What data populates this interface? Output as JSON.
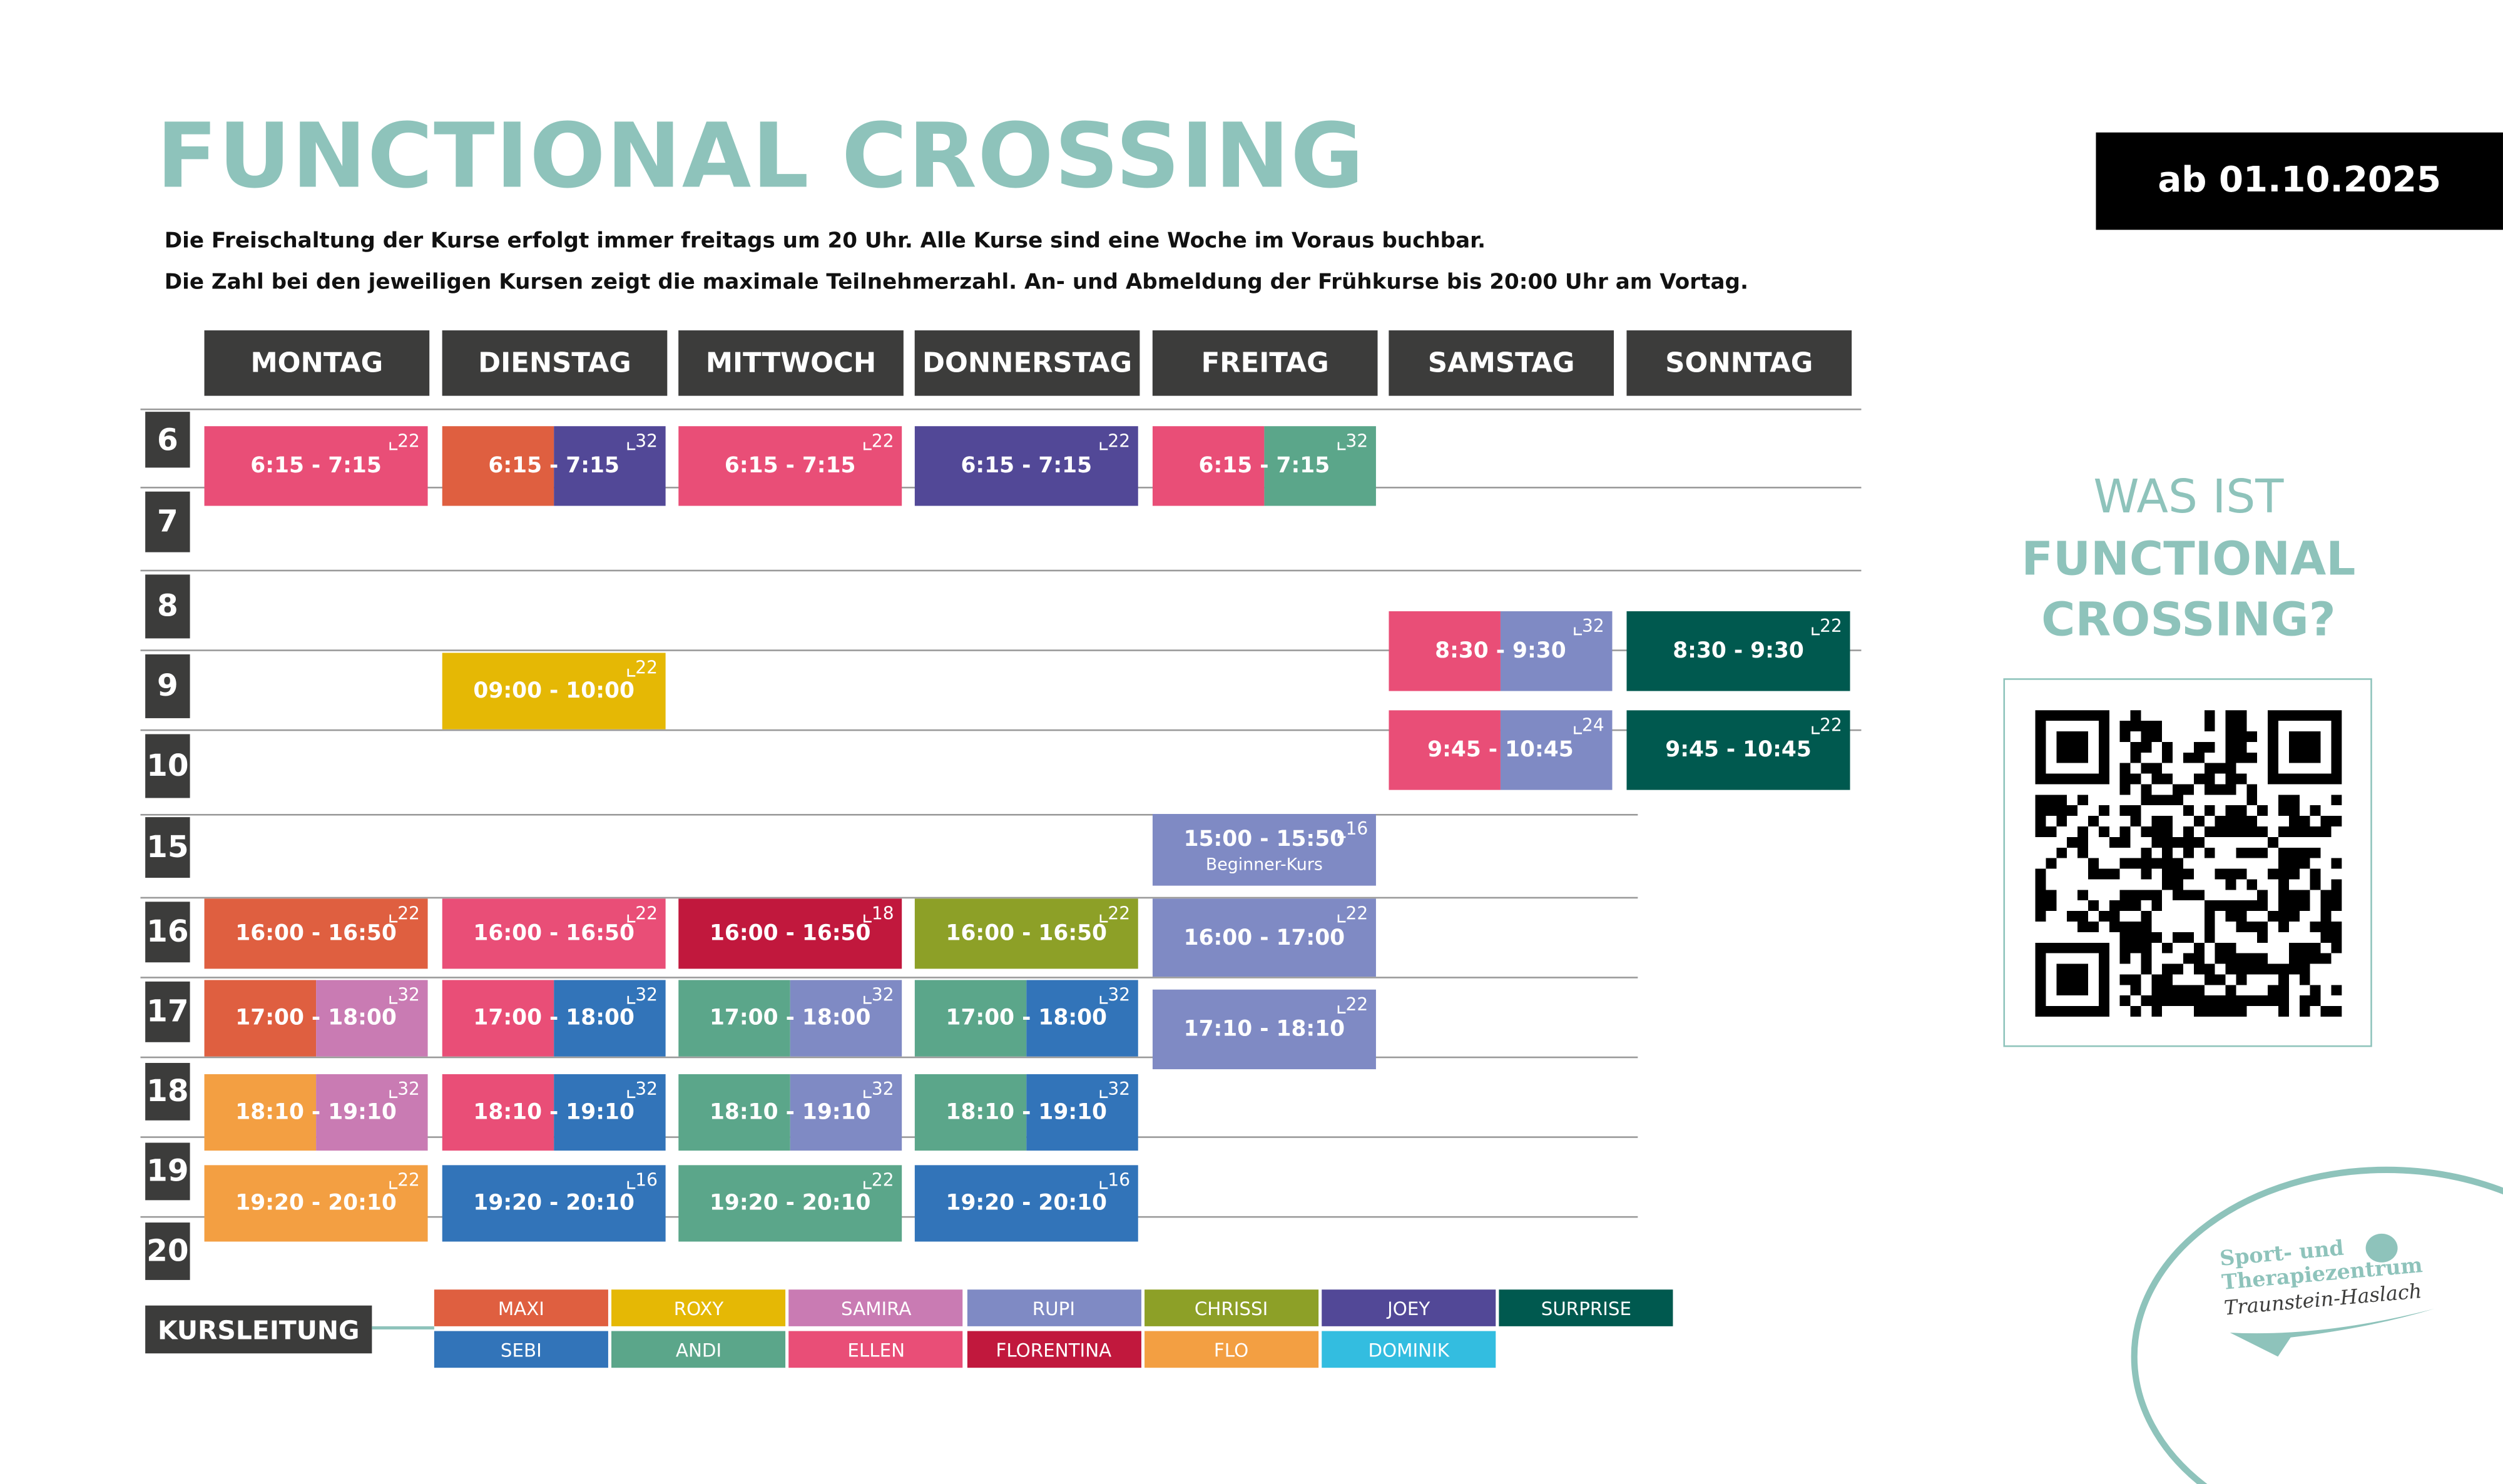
{
  "header": {
    "title": "FUNCTIONAL CROSSING",
    "info_line_1": "Die Freischaltung der Kurse erfolgt immer freitags um 20 Uhr. Alle Kurse sind eine Woche im Voraus buchbar.",
    "info_line_2": "Die Zahl bei den jeweiligen Kursen zeigt die maximale Teilnehmerzahl. An- und Abmeldung der Frühkurse bis 20:00 Uhr am Vortag.",
    "valid_from": "ab 01.10.2025"
  },
  "days": [
    "MONTAG",
    "DIENSTAG",
    "MITTWOCH",
    "DONNERSTAG",
    "FREITAG",
    "SAMSTAG",
    "SONNTAG"
  ],
  "hours": [
    "6",
    "7",
    "8",
    "9",
    "10",
    "15",
    "16",
    "17",
    "18",
    "19",
    "20"
  ],
  "courses": [
    {
      "day": 0,
      "time": "6:15 - 7:15",
      "capacity": "22",
      "trainers": [
        "ELLEN"
      ]
    },
    {
      "day": 1,
      "time": "6:15 - 7:15",
      "capacity": "32",
      "trainers": [
        "MAXI",
        "JOEY"
      ]
    },
    {
      "day": 2,
      "time": "6:15 - 7:15",
      "capacity": "22",
      "trainers": [
        "ELLEN"
      ]
    },
    {
      "day": 3,
      "time": "6:15 - 7:15",
      "capacity": "22",
      "trainers": [
        "JOEY"
      ]
    },
    {
      "day": 4,
      "time": "6:15 - 7:15",
      "capacity": "32",
      "trainers": [
        "ELLEN",
        "ANDI"
      ]
    },
    {
      "day": 1,
      "time": "09:00 - 10:00",
      "capacity": "22",
      "trainers": [
        "ROXY"
      ]
    },
    {
      "day": 5,
      "time": "8:30 - 9:30",
      "capacity": "32",
      "trainers": [
        "ELLEN",
        "RUPI"
      ]
    },
    {
      "day": 6,
      "time": "8:30 - 9:30",
      "capacity": "22",
      "trainers": [
        "SURPRISE"
      ]
    },
    {
      "day": 5,
      "time": "9:45 - 10:45",
      "capacity": "24",
      "trainers": [
        "ELLEN",
        "RUPI"
      ]
    },
    {
      "day": 6,
      "time": "9:45 - 10:45",
      "capacity": "22",
      "trainers": [
        "SURPRISE"
      ]
    },
    {
      "day": 4,
      "time": "15:00 - 15:50",
      "capacity": "16",
      "trainers": [
        "RUPI"
      ],
      "note": "Beginner-Kurs"
    },
    {
      "day": 0,
      "time": "16:00 - 16:50",
      "capacity": "22",
      "trainers": [
        "MAXI"
      ]
    },
    {
      "day": 1,
      "time": "16:00 - 16:50",
      "capacity": "22",
      "trainers": [
        "ELLEN"
      ]
    },
    {
      "day": 2,
      "time": "16:00 - 16:50",
      "capacity": "18",
      "trainers": [
        "FLORENTINA"
      ]
    },
    {
      "day": 3,
      "time": "16:00 - 16:50",
      "capacity": "22",
      "trainers": [
        "CHRISSI"
      ]
    },
    {
      "day": 4,
      "time": "16:00 - 17:00",
      "capacity": "22",
      "trainers": [
        "RUPI"
      ]
    },
    {
      "day": 0,
      "time": "17:00 - 18:00",
      "capacity": "32",
      "trainers": [
        "MAXI",
        "SAMIRA"
      ]
    },
    {
      "day": 1,
      "time": "17:00 - 18:00",
      "capacity": "32",
      "trainers": [
        "ELLEN",
        "SEBI"
      ]
    },
    {
      "day": 2,
      "time": "17:00 - 18:00",
      "capacity": "32",
      "trainers": [
        "ANDI",
        "RUPI"
      ]
    },
    {
      "day": 3,
      "time": "17:00 - 18:00",
      "capacity": "32",
      "trainers": [
        "ANDI",
        "SEBI"
      ]
    },
    {
      "day": 4,
      "time": "17:10 - 18:10",
      "capacity": "22",
      "trainers": [
        "RUPI"
      ]
    },
    {
      "day": 0,
      "time": "18:10 - 19:10",
      "capacity": "32",
      "trainers": [
        "FLO",
        "SAMIRA"
      ]
    },
    {
      "day": 1,
      "time": "18:10 - 19:10",
      "capacity": "32",
      "trainers": [
        "ELLEN",
        "SEBI"
      ]
    },
    {
      "day": 2,
      "time": "18:10 - 19:10",
      "capacity": "32",
      "trainers": [
        "ANDI",
        "RUPI"
      ]
    },
    {
      "day": 3,
      "time": "18:10 - 19:10",
      "capacity": "32",
      "trainers": [
        "ANDI",
        "SEBI"
      ]
    },
    {
      "day": 0,
      "time": "19:20 - 20:10",
      "capacity": "22",
      "trainers": [
        "FLO"
      ]
    },
    {
      "day": 1,
      "time": "19:20 - 20:10",
      "capacity": "16",
      "trainers": [
        "SEBI"
      ]
    },
    {
      "day": 2,
      "time": "19:20 - 20:10",
      "capacity": "22",
      "trainers": [
        "ANDI"
      ]
    },
    {
      "day": 3,
      "time": "19:20 - 20:10",
      "capacity": "16",
      "trainers": [
        "SEBI"
      ]
    }
  ],
  "legend": {
    "title": "KURSLEITUNG",
    "trainers": [
      {
        "name": "MAXI",
        "color": "#DF5F40"
      },
      {
        "name": "ROXY",
        "color": "#E5B805"
      },
      {
        "name": "SAMIRA",
        "color": "#C97BB3"
      },
      {
        "name": "RUPI",
        "color": "#7F8AC4"
      },
      {
        "name": "CHRISSI",
        "color": "#8DA027"
      },
      {
        "name": "JOEY",
        "color": "#524897"
      },
      {
        "name": "SURPRISE",
        "color": "#00594F"
      },
      {
        "name": "SEBI",
        "color": "#3274B9"
      },
      {
        "name": "ANDI",
        "color": "#5BA68A"
      },
      {
        "name": "ELLEN",
        "color": "#E94E77"
      },
      {
        "name": "FLORENTINA",
        "color": "#C1183D"
      },
      {
        "name": "FLO",
        "color": "#F39F42"
      },
      {
        "name": "DOMINIK",
        "color": "#33BDE0"
      }
    ]
  },
  "sidebar": {
    "line_1": "WAS IST",
    "line_2": "FUNCTIONAL",
    "line_3": "CROSSING?"
  },
  "logo": {
    "line_1": "Sport- und",
    "line_2": "Therapiezentrum",
    "line_3": "Traunstein-Haslach"
  },
  "colors": {
    "accent": "#8EC3BB",
    "dark": "#3C3C3B"
  }
}
